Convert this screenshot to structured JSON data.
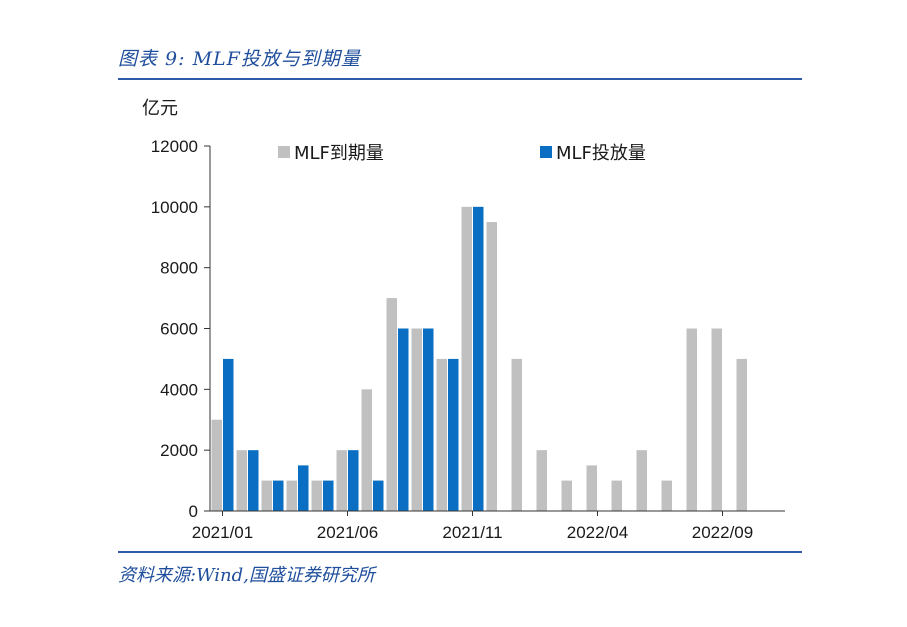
{
  "figure": {
    "title": "图表 9:  MLF投放与到期量",
    "source": "资料来源:Wind,国盛证券研究所"
  },
  "chart_data": {
    "type": "bar",
    "ylabel": "亿元",
    "ylim": [
      0,
      12000
    ],
    "yticks": [
      0,
      2000,
      4000,
      6000,
      8000,
      10000,
      12000
    ],
    "xtick_labels": [
      "2021/01",
      "2021/06",
      "2021/11",
      "2022/04",
      "2022/09"
    ],
    "xtick_positions": [
      "2021/01",
      "2021/06",
      "2021/11",
      "2022/04",
      "2022/09"
    ],
    "categories": [
      "2021/01",
      "2021/02",
      "2021/03",
      "2021/04",
      "2021/05",
      "2021/06",
      "2021/07",
      "2021/08",
      "2021/09",
      "2021/10",
      "2021/11",
      "2021/12",
      "2022/01",
      "2022/02",
      "2022/03",
      "2022/04",
      "2022/05",
      "2022/06",
      "2022/07",
      "2022/08",
      "2022/09",
      "2022/10",
      "2022/11"
    ],
    "series": [
      {
        "name": "MLF到期量",
        "color": "#c0c0c0",
        "values": [
          3000,
          2000,
          1000,
          1000,
          1000,
          2000,
          4000,
          7000,
          6000,
          5000,
          10000,
          9500,
          5000,
          2000,
          1000,
          1500,
          1000,
          2000,
          1000,
          6000,
          6000,
          5000,
          null
        ]
      },
      {
        "name": "MLF投放量",
        "color": "#0a6fc2",
        "values": [
          5000,
          2000,
          1000,
          1500,
          1000,
          2000,
          1000,
          6000,
          6000,
          5000,
          10000,
          null,
          null,
          null,
          null,
          null,
          null,
          null,
          null,
          null,
          null,
          null,
          null
        ]
      }
    ],
    "legend": "top"
  }
}
